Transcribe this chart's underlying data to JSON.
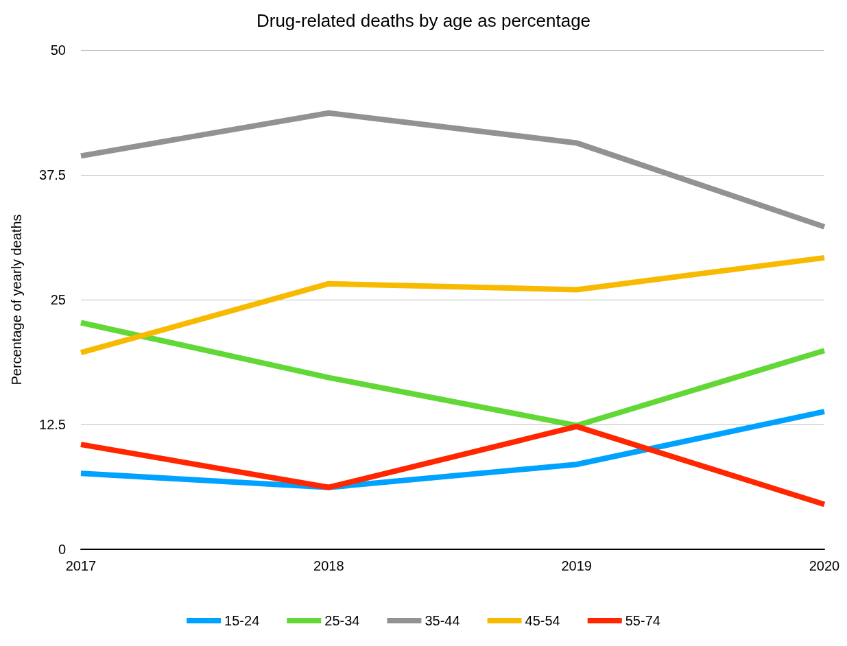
{
  "chart_data": {
    "type": "line",
    "title": "Drug-related deaths by age as percentage",
    "ylabel": "Percentage of yearly deaths",
    "categories": [
      "2017",
      "2018",
      "2019",
      "2020"
    ],
    "series": [
      {
        "name": "15-24",
        "color": "#00a2ff",
        "values": [
          7.6,
          6.2,
          8.5,
          13.8
        ]
      },
      {
        "name": "25-34",
        "color": "#61d836",
        "values": [
          22.7,
          17.2,
          12.4,
          19.9
        ]
      },
      {
        "name": "35-44",
        "color": "#929292",
        "values": [
          39.4,
          43.7,
          40.7,
          32.3
        ]
      },
      {
        "name": "45-54",
        "color": "#f8ba00",
        "values": [
          19.7,
          26.6,
          26.0,
          29.2
        ]
      },
      {
        "name": "55-74",
        "color": "#ff2600",
        "values": [
          10.5,
          6.2,
          12.3,
          4.5
        ]
      }
    ],
    "ylim": [
      0,
      50
    ],
    "yticks": [
      0,
      12.5,
      25,
      37.5,
      50
    ],
    "grid": "y",
    "legend": "bottom",
    "marker": "none",
    "line_style": "solid"
  }
}
